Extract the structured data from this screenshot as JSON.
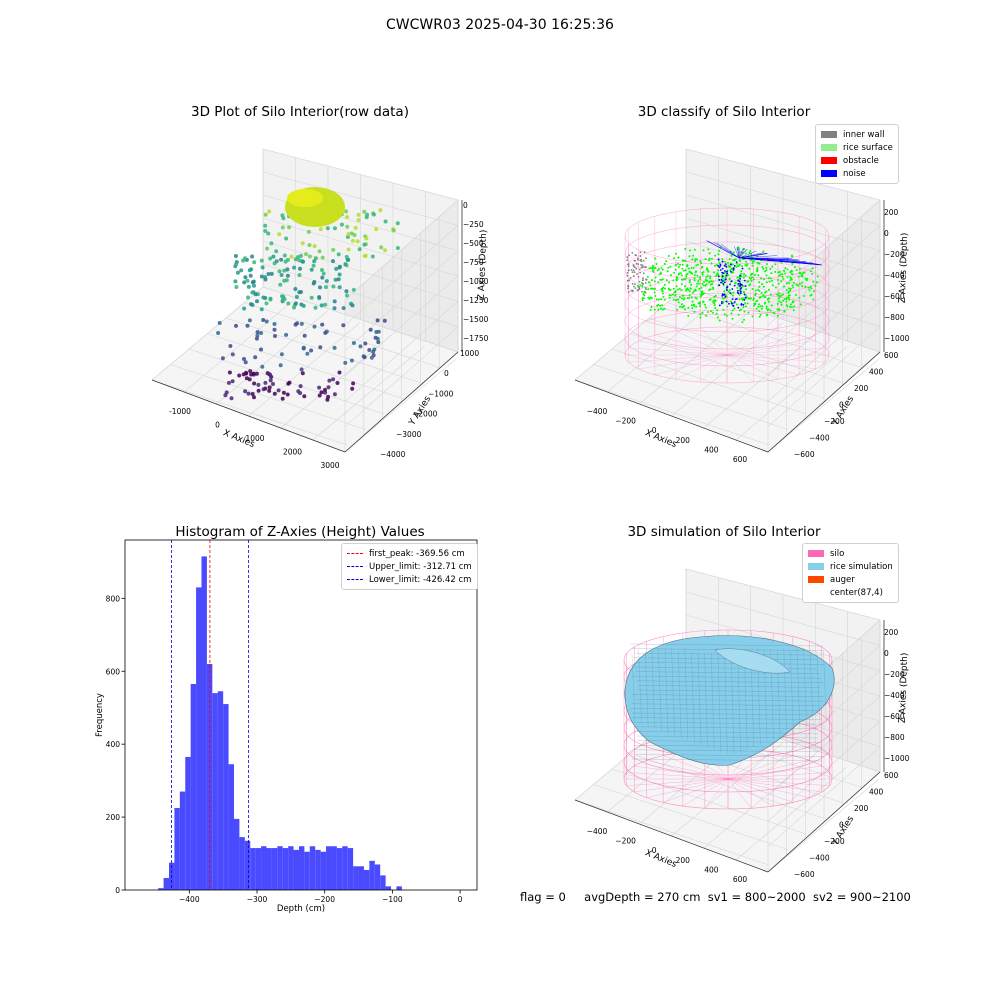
{
  "suptitle": "CWCWR03 2025-04-30 16:25:36",
  "status": {
    "flag": "flag = 0",
    "avg_depth": "avgDepth = 270 cm",
    "sv1": "sv1 = 800~2000",
    "sv2": "sv2 = 900~2100"
  },
  "colors": {
    "inner_wall": "#808080",
    "rice_surface": "#90ee90",
    "obstacle": "#ff0000",
    "noise": "#0000ff",
    "silo": "#ff69b4",
    "rice_simulation": "#87ceeb",
    "auger": "#ff4500",
    "histogram_bar": "#4a4aff",
    "first_peak_line": "#ff0000",
    "limit_lines": "#0000cc"
  },
  "chart_data": [
    {
      "type": "scatter",
      "projection": "3d",
      "title": "3D Plot of Silo Interior(row data)",
      "xlabel": "X Axies",
      "ylabel": "Y Axies",
      "zlabel": "Z Axies (Depth)",
      "x_ticks": [
        "-1000",
        "0",
        "1000",
        "2000",
        "3000"
      ],
      "y_ticks": [
        "1000",
        "0",
        "−1000",
        "−2000",
        "−3000",
        "−4000"
      ],
      "z_ticks": [
        "0",
        "−250",
        "−500",
        "−750",
        "−1000",
        "−1250",
        "−1500",
        "−1750"
      ],
      "colormap": "viridis",
      "grid": true
    },
    {
      "type": "scatter",
      "projection": "3d",
      "title": "3D classify of Silo Interior",
      "xlabel": "X Axies",
      "ylabel": "Y Axies",
      "zlabel": "Z Axies (Depth)",
      "x_ticks": [
        "−400",
        "−200",
        "0",
        "200",
        "400",
        "600"
      ],
      "y_ticks": [
        "600",
        "400",
        "200",
        "0",
        "−200",
        "−400",
        "−600"
      ],
      "z_ticks": [
        "200",
        "0",
        "−200",
        "−400",
        "−600",
        "−800",
        "−1000"
      ],
      "legend": [
        "inner wall",
        "rice surface",
        "obstacle",
        "noise"
      ],
      "legend_placement": "top-right",
      "grid": true
    },
    {
      "type": "bar",
      "title": "Histogram of Z-Axies (Height) Values",
      "xlabel": "Depth (cm)",
      "ylabel": "Frequency",
      "xlim": [
        -495,
        25
      ],
      "ylim": [
        0,
        960
      ],
      "x_ticks": [
        -400,
        -300,
        -200,
        -100,
        0
      ],
      "x_tick_labels": [
        "−400",
        "−300",
        "−200",
        "−100",
        "0"
      ],
      "y_ticks": [
        0,
        200,
        400,
        600,
        800
      ],
      "y_tick_labels": [
        "0",
        "200",
        "400",
        "600",
        "800"
      ],
      "bin_width": 8,
      "bin_start": -446,
      "values": [
        5,
        33,
        75,
        225,
        270,
        365,
        565,
        830,
        915,
        620,
        540,
        545,
        510,
        345,
        195,
        145,
        135,
        115,
        115,
        120,
        115,
        115,
        120,
        115,
        120,
        110,
        120,
        105,
        120,
        110,
        105,
        120,
        120,
        115,
        120,
        115,
        65,
        65,
        55,
        80,
        70,
        40,
        10,
        0,
        10
      ],
      "vlines": [
        {
          "label": "first_peak: -369.56 cm",
          "x": -369.56,
          "color": "#ff0000"
        },
        {
          "label": "Upper_limit: -312.71 cm",
          "x": -312.71,
          "color": "#0000cc"
        },
        {
          "label": "Lower_limit: -426.42 cm",
          "x": -426.42,
          "color": "#0000cc"
        }
      ],
      "legend_placement": "top-right"
    },
    {
      "type": "surface",
      "projection": "3d",
      "title": "3D simulation of Silo Interior",
      "xlabel": "X Axies",
      "ylabel": "Y Axies",
      "zlabel": "Z Axies (Depth)",
      "x_ticks": [
        "−400",
        "−200",
        "0",
        "200",
        "400",
        "600"
      ],
      "y_ticks": [
        "600",
        "400",
        "200",
        "0",
        "−200",
        "−400",
        "−600"
      ],
      "z_ticks": [
        "200",
        "0",
        "−200",
        "−400",
        "−600",
        "−800",
        "−1000"
      ],
      "legend": [
        "silo",
        "rice simulation",
        "auger",
        "center(87,4)"
      ],
      "legend_placement": "top-right",
      "grid": true
    }
  ]
}
